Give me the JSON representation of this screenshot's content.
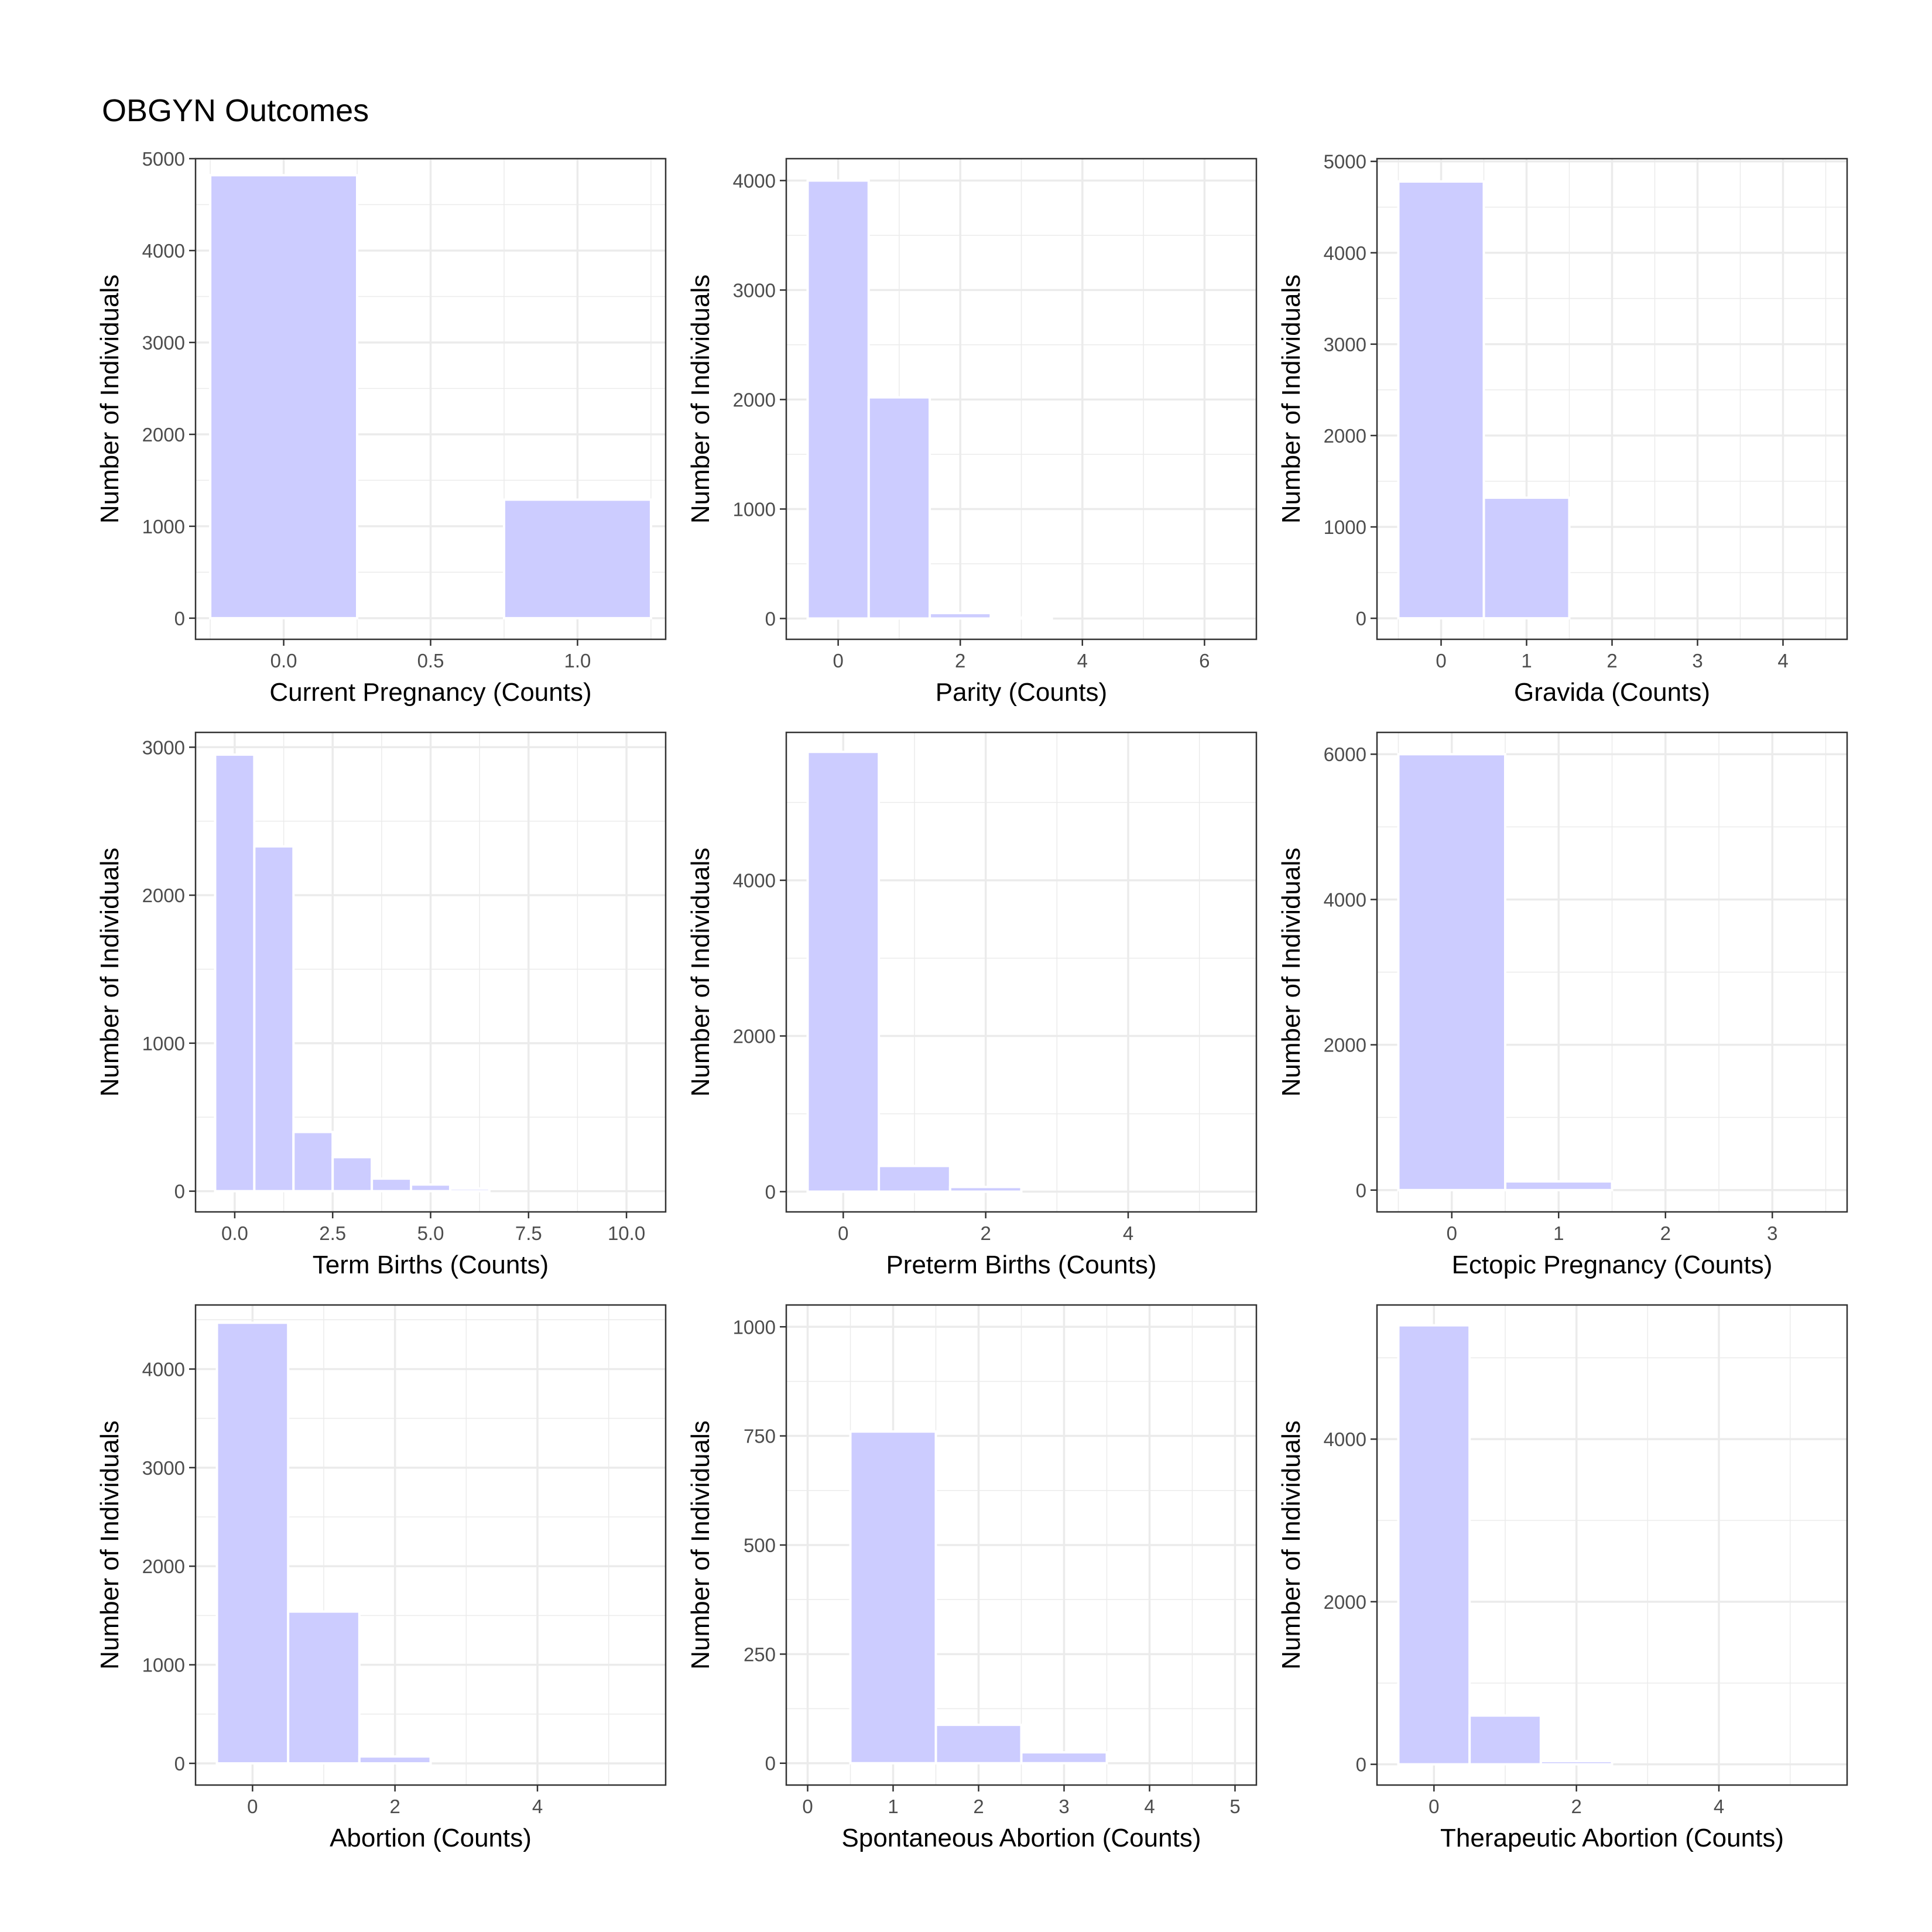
{
  "title": "OBGYN Outcomes",
  "style": {
    "bar_fill": "#ccccff",
    "bar_outline": "#ffffff",
    "panel_background": "#ffffff",
    "grid_color": "#ebebeb",
    "border_color": "#333333",
    "tick_text_color": "#4d4d4d"
  },
  "chart_data": [
    {
      "type": "bar",
      "xlabel": "Current Pregnancy (Counts)",
      "ylabel": "Number of Individuals",
      "xlim": [
        -0.3,
        1.3
      ],
      "ylim": [
        -230,
        5000
      ],
      "xticks": [
        0.0,
        0.5,
        1.0
      ],
      "xtick_labels": [
        "0.0",
        "0.5",
        "1.0"
      ],
      "yticks": [
        0,
        1000,
        2000,
        3000,
        4000,
        5000
      ],
      "ytick_labels": [
        "0",
        "1000",
        "2000",
        "3000",
        "4000",
        "5000"
      ],
      "bin_width": 0.5,
      "x": [
        0,
        1
      ],
      "values": [
        4820,
        1290
      ]
    },
    {
      "type": "bar",
      "xlabel": "Parity (Counts)",
      "ylabel": "Number of Individuals",
      "xlim": [
        -0.85,
        6.85
      ],
      "ylim": [
        -190,
        4200
      ],
      "xticks": [
        0,
        2,
        4,
        6
      ],
      "xtick_labels": [
        "0",
        "2",
        "4",
        "6"
      ],
      "yticks": [
        0,
        1000,
        2000,
        3000,
        4000
      ],
      "ytick_labels": [
        "0",
        "1000",
        "2000",
        "3000",
        "4000"
      ],
      "bin_width": 1,
      "x": [
        0,
        1,
        2,
        3
      ],
      "values": [
        4000,
        2020,
        50,
        8
      ]
    },
    {
      "type": "bar",
      "xlabel": "Gravida (Counts)",
      "ylabel": "Number of Individuals",
      "xlim": [
        -0.75,
        4.75
      ],
      "ylim": [
        -230,
        5030
      ],
      "xticks": [
        0,
        1,
        2,
        3,
        4
      ],
      "xtick_labels": [
        "0",
        "1",
        "2",
        "3",
        "4"
      ],
      "yticks": [
        0,
        1000,
        2000,
        3000,
        4000,
        5000
      ],
      "ytick_labels": [
        "0",
        "1000",
        "2000",
        "3000",
        "4000",
        "5000"
      ],
      "bin_width": 1,
      "x": [
        0,
        1
      ],
      "values": [
        4780,
        1320
      ]
    },
    {
      "type": "bar",
      "xlabel": "Term Births (Counts)",
      "ylabel": "Number of Individuals",
      "xlim": [
        -1.0,
        11.0
      ],
      "ylim": [
        -140,
        3100
      ],
      "xticks": [
        0.0,
        2.5,
        5.0,
        7.5,
        10.0
      ],
      "xtick_labels": [
        "0.0",
        "2.5",
        "5.0",
        "7.5",
        "10.0"
      ],
      "yticks": [
        0,
        1000,
        2000,
        3000
      ],
      "ytick_labels": [
        "0",
        "1000",
        "2000",
        "3000"
      ],
      "bin_width": 1,
      "x": [
        0,
        1,
        2,
        3,
        4,
        5,
        6
      ],
      "values": [
        2950,
        2330,
        400,
        230,
        85,
        45,
        18
      ]
    },
    {
      "type": "bar",
      "xlabel": "Preterm Births (Counts)",
      "ylabel": "Number of Individuals",
      "xlim": [
        -0.8,
        5.8
      ],
      "ylim": [
        -260,
        5900
      ],
      "xticks": [
        0,
        2,
        4
      ],
      "xtick_labels": [
        "0",
        "2",
        "4"
      ],
      "yticks": [
        0,
        2000,
        4000
      ],
      "ytick_labels": [
        "0",
        "2000",
        "4000"
      ],
      "bin_width": 1,
      "x": [
        0,
        1,
        2
      ],
      "values": [
        5650,
        330,
        60
      ]
    },
    {
      "type": "bar",
      "xlabel": "Ectopic Pregnancy (Counts)",
      "ylabel": "Number of Individuals",
      "xlim": [
        -0.7,
        3.7
      ],
      "ylim": [
        -300,
        6300
      ],
      "xticks": [
        0,
        1,
        2,
        3
      ],
      "xtick_labels": [
        "0",
        "1",
        "2",
        "3"
      ],
      "yticks": [
        0,
        2000,
        4000,
        6000
      ],
      "ytick_labels": [
        "0",
        "2000",
        "4000",
        "6000"
      ],
      "bin_width": 1,
      "x": [
        0,
        1
      ],
      "values": [
        6000,
        120
      ]
    },
    {
      "type": "bar",
      "xlabel": "Abortion (Counts)",
      "ylabel": "Number of Individuals",
      "xlim": [
        -0.8,
        5.8
      ],
      "ylim": [
        -220,
        4650
      ],
      "xticks": [
        0,
        2,
        4
      ],
      "xtick_labels": [
        "0",
        "2",
        "4"
      ],
      "yticks": [
        0,
        1000,
        2000,
        3000,
        4000
      ],
      "ytick_labels": [
        "0",
        "1000",
        "2000",
        "3000",
        "4000"
      ],
      "bin_width": 1,
      "x": [
        0,
        1,
        2
      ],
      "values": [
        4470,
        1540,
        70
      ]
    },
    {
      "type": "bar",
      "xlabel": "Spontaneous Abortion (Counts)",
      "ylabel": "Number of Individuals",
      "xlim": [
        -0.25,
        5.25
      ],
      "ylim": [
        -50,
        1050
      ],
      "xticks": [
        0,
        1,
        2,
        3,
        4,
        5
      ],
      "xtick_labels": [
        "0",
        "1",
        "2",
        "3",
        "4",
        "5"
      ],
      "yticks": [
        0,
        250,
        500,
        750,
        1000
      ],
      "ytick_labels": [
        "0",
        "250",
        "500",
        "750",
        "1000"
      ],
      "bin_width": 1,
      "x": [
        1,
        2,
        3
      ],
      "values": [
        760,
        88,
        25
      ]
    },
    {
      "type": "bar",
      "xlabel": "Therapeutic Abortion (Counts)",
      "ylabel": "Number of Individuals",
      "xlim": [
        -0.8,
        5.8
      ],
      "ylim": [
        -255,
        5650
      ],
      "xticks": [
        0,
        2,
        4
      ],
      "xtick_labels": [
        "0",
        "2",
        "4"
      ],
      "yticks": [
        0,
        2000,
        4000
      ],
      "ytick_labels": [
        "0",
        "2000",
        "4000"
      ],
      "bin_width": 1,
      "x": [
        0,
        1,
        2
      ],
      "values": [
        5400,
        600,
        40
      ]
    }
  ]
}
